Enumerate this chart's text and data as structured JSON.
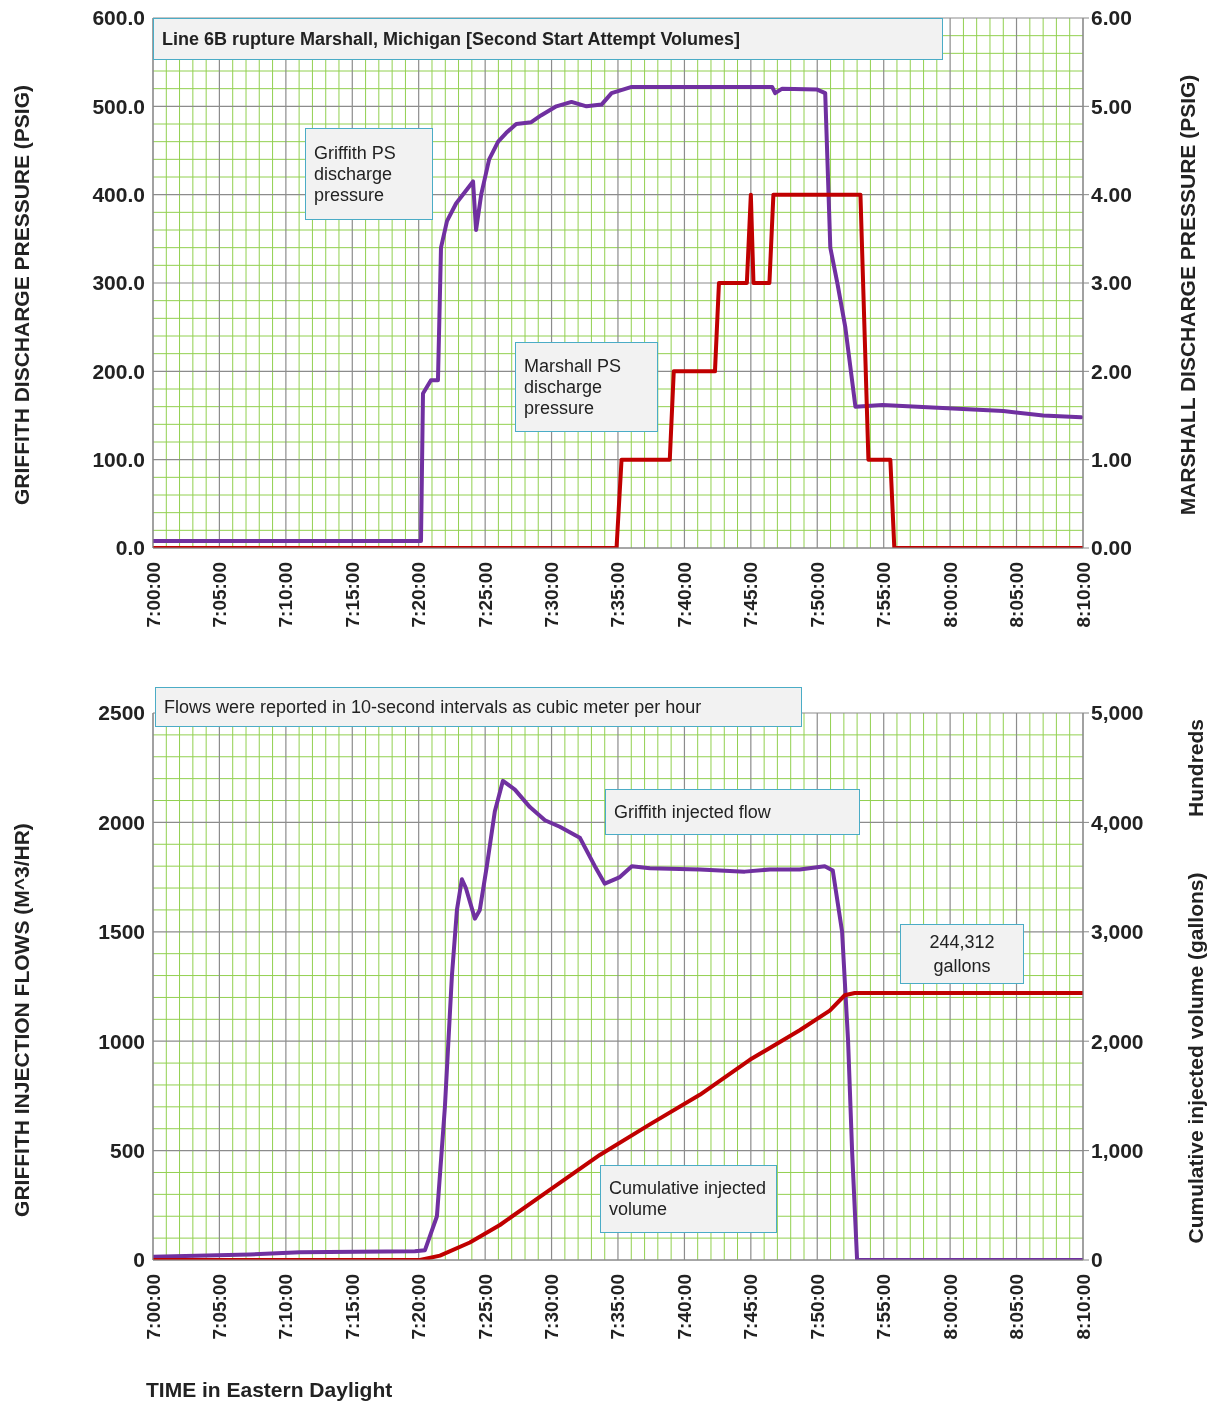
{
  "chart_data": [
    {
      "type": "line",
      "title": "Line 6B rupture Marshall,  Michigan  [Second Start Attempt Volumes]",
      "ylabel": "GRIFFITH DISCHARGE PRESSURE (PSIG)",
      "y2label": "MARSHALL DISCHARGE PRESSURE (PSIG)",
      "xlim": [
        7,
        8.1667
      ],
      "xticks": [
        {
          "value": 7,
          "label": "7:00:00"
        },
        {
          "value": 7.0167,
          "label": null
        },
        {
          "value": 7.0333,
          "label": null
        },
        {
          "value": 7.05,
          "label": null
        },
        {
          "value": 7.0667,
          "label": null
        },
        {
          "value": 7.0833,
          "label": "7:05:00"
        },
        {
          "value": 7.1,
          "label": null
        },
        {
          "value": 7.1167,
          "label": null
        },
        {
          "value": 7.1333,
          "label": null
        },
        {
          "value": 7.15,
          "label": null
        },
        {
          "value": 7.1667,
          "label": "7:10:00"
        },
        {
          "value": 7.1833,
          "label": null
        },
        {
          "value": 7.2,
          "label": null
        },
        {
          "value": 7.2167,
          "label": null
        },
        {
          "value": 7.2333,
          "label": null
        },
        {
          "value": 7.25,
          "label": "7:15:00"
        },
        {
          "value": 7.2667,
          "label": null
        },
        {
          "value": 7.2833,
          "label": null
        },
        {
          "value": 7.3,
          "label": null
        },
        {
          "value": 7.3167,
          "label": null
        },
        {
          "value": 7.3333,
          "label": "7:20:00"
        },
        {
          "value": 7.35,
          "label": null
        },
        {
          "value": 7.3667,
          "label": null
        },
        {
          "value": 7.3833,
          "label": null
        },
        {
          "value": 7.4,
          "label": null
        },
        {
          "value": 7.4167,
          "label": "7:25:00"
        },
        {
          "value": 7.4333,
          "label": null
        },
        {
          "value": 7.45,
          "label": null
        },
        {
          "value": 7.4667,
          "label": null
        },
        {
          "value": 7.4833,
          "label": null
        },
        {
          "value": 7.5,
          "label": "7:30:00"
        },
        {
          "value": 7.5167,
          "label": null
        },
        {
          "value": 7.5333,
          "label": null
        },
        {
          "value": 7.55,
          "label": null
        },
        {
          "value": 7.5667,
          "label": null
        },
        {
          "value": 7.5833,
          "label": "7:35:00"
        },
        {
          "value": 7.6,
          "label": null
        },
        {
          "value": 7.6167,
          "label": null
        },
        {
          "value": 7.6333,
          "label": null
        },
        {
          "value": 7.65,
          "label": null
        },
        {
          "value": 7.6667,
          "label": "7:40:00"
        },
        {
          "value": 7.6833,
          "label": null
        },
        {
          "value": 7.7,
          "label": null
        },
        {
          "value": 7.7167,
          "label": null
        },
        {
          "value": 7.7333,
          "label": null
        },
        {
          "value": 7.75,
          "label": "7:45:00"
        },
        {
          "value": 7.7667,
          "label": null
        },
        {
          "value": 7.7833,
          "label": null
        },
        {
          "value": 7.8,
          "label": null
        },
        {
          "value": 7.8167,
          "label": null
        },
        {
          "value": 7.8333,
          "label": "7:50:00"
        },
        {
          "value": 7.85,
          "label": null
        },
        {
          "value": 7.8667,
          "label": null
        },
        {
          "value": 7.8833,
          "label": null
        },
        {
          "value": 7.9,
          "label": null
        },
        {
          "value": 7.9167,
          "label": "7:55:00"
        },
        {
          "value": 7.9333,
          "label": null
        },
        {
          "value": 7.95,
          "label": null
        },
        {
          "value": 7.9667,
          "label": null
        },
        {
          "value": 7.9833,
          "label": null
        },
        {
          "value": 8,
          "label": "8:00:00"
        },
        {
          "value": 8.0167,
          "label": null
        },
        {
          "value": 8.0333,
          "label": null
        },
        {
          "value": 8.05,
          "label": null
        },
        {
          "value": 8.0667,
          "label": null
        },
        {
          "value": 8.0833,
          "label": "8:05:00"
        },
        {
          "value": 8.1,
          "label": null
        },
        {
          "value": 8.1167,
          "label": null
        },
        {
          "value": 8.1333,
          "label": null
        },
        {
          "value": 8.15,
          "label": null
        },
        {
          "value": 8.1667,
          "label": "8:10:00"
        }
      ],
      "ylim": [
        0,
        600
      ],
      "yticks": [
        {
          "value": 0,
          "label": "0.0"
        },
        {
          "value": 20,
          "label": null
        },
        {
          "value": 40,
          "label": null
        },
        {
          "value": 60,
          "label": null
        },
        {
          "value": 80,
          "label": null
        },
        {
          "value": 100,
          "label": "100.0"
        },
        {
          "value": 120,
          "label": null
        },
        {
          "value": 140,
          "label": null
        },
        {
          "value": 160,
          "label": null
        },
        {
          "value": 180,
          "label": null
        },
        {
          "value": 200,
          "label": "200.0"
        },
        {
          "value": 220,
          "label": null
        },
        {
          "value": 240,
          "label": null
        },
        {
          "value": 260,
          "label": null
        },
        {
          "value": 280,
          "label": null
        },
        {
          "value": 300,
          "label": "300.0"
        },
        {
          "value": 320,
          "label": null
        },
        {
          "value": 340,
          "label": null
        },
        {
          "value": 360,
          "label": null
        },
        {
          "value": 380,
          "label": null
        },
        {
          "value": 400,
          "label": "400.0"
        },
        {
          "value": 420,
          "label": null
        },
        {
          "value": 440,
          "label": null
        },
        {
          "value": 460,
          "label": null
        },
        {
          "value": 480,
          "label": null
        },
        {
          "value": 500,
          "label": "500.0"
        },
        {
          "value": 520,
          "label": null
        },
        {
          "value": 540,
          "label": null
        },
        {
          "value": 560,
          "label": null
        },
        {
          "value": 580,
          "label": null
        },
        {
          "value": 600,
          "label": "600.0"
        }
      ],
      "y2lim": [
        0,
        6
      ],
      "y2ticks": [
        {
          "value": 0,
          "label": "0.00"
        },
        {
          "value": 1,
          "label": "1.00"
        },
        {
          "value": 2,
          "label": "2.00"
        },
        {
          "value": 3,
          "label": "3.00"
        },
        {
          "value": 4,
          "label": "4.00"
        },
        {
          "value": 5,
          "label": "5.00"
        },
        {
          "value": 6,
          "label": "6.00"
        }
      ],
      "grid": true,
      "series": [
        {
          "name": "Griffith PS discharge pressure",
          "color": "#7030a0",
          "x": [
            7.0,
            7.3362,
            7.3387,
            7.3487,
            7.3575,
            7.3613,
            7.3688,
            7.3802,
            7.4015,
            7.4053,
            7.4117,
            7.4217,
            7.433,
            7.4432,
            7.4557,
            7.4745,
            7.4872,
            7.506,
            7.525,
            7.5438,
            7.5627,
            7.5753,
            7.6005,
            7.6885,
            7.7767,
            7.7805,
            7.7893,
            7.8333,
            7.8433,
            7.8497,
            7.8585,
            7.8685,
            7.8812,
            7.9152,
            8.0033,
            8.0667,
            8.1167,
            8.1643
          ],
          "values": [
            8,
            8,
            175,
            190,
            190,
            340,
            370,
            390,
            415,
            360,
            400,
            440,
            460,
            470,
            480,
            482,
            490,
            500,
            505,
            500,
            502,
            515,
            522,
            522,
            522,
            515,
            520,
            519,
            515,
            340,
            300,
            250,
            160,
            162,
            158,
            155,
            150,
            148
          ]
        },
        {
          "name": "Marshall PS discharge pressure",
          "color": "#c00000",
          "axis": "y2",
          "x": [
            7.0,
            7.5815,
            7.5878,
            7.6483,
            7.6533,
            7.705,
            7.71,
            7.745,
            7.75,
            7.7533,
            7.7733,
            7.7783,
            7.8875,
            7.8975,
            7.925,
            7.93,
            8.1667
          ],
          "values": [
            0,
            0,
            1,
            1,
            2,
            2,
            3,
            3,
            4,
            3,
            3,
            4,
            4,
            1,
            1,
            0,
            0
          ]
        }
      ]
    },
    {
      "type": "line",
      "title": "Flows were reported in 10-second intervals as cubic meter per hour",
      "xlabel": "TIME in Eastern Daylight",
      "ylabel": "GRIFFITH INJECTION FLOWS (M^3/HR)",
      "y2label": "Cumulative injected volume (gallons)",
      "annotations": [
        "Hundreds",
        "244,312 gallons"
      ],
      "xlim": [
        7,
        8.1667
      ],
      "xticks": [
        {
          "value": 7,
          "label": "7:00:00"
        },
        {
          "value": 7.0167,
          "label": null
        },
        {
          "value": 7.0333,
          "label": null
        },
        {
          "value": 7.05,
          "label": null
        },
        {
          "value": 7.0667,
          "label": null
        },
        {
          "value": 7.0833,
          "label": "7:05:00"
        },
        {
          "value": 7.1,
          "label": null
        },
        {
          "value": 7.1167,
          "label": null
        },
        {
          "value": 7.1333,
          "label": null
        },
        {
          "value": 7.15,
          "label": null
        },
        {
          "value": 7.1667,
          "label": "7:10:00"
        },
        {
          "value": 7.1833,
          "label": null
        },
        {
          "value": 7.2,
          "label": null
        },
        {
          "value": 7.2167,
          "label": null
        },
        {
          "value": 7.2333,
          "label": null
        },
        {
          "value": 7.25,
          "label": "7:15:00"
        },
        {
          "value": 7.2667,
          "label": null
        },
        {
          "value": 7.2833,
          "label": null
        },
        {
          "value": 7.3,
          "label": null
        },
        {
          "value": 7.3167,
          "label": null
        },
        {
          "value": 7.3333,
          "label": "7:20:00"
        },
        {
          "value": 7.35,
          "label": null
        },
        {
          "value": 7.3667,
          "label": null
        },
        {
          "value": 7.3833,
          "label": null
        },
        {
          "value": 7.4,
          "label": null
        },
        {
          "value": 7.4167,
          "label": "7:25:00"
        },
        {
          "value": 7.4333,
          "label": null
        },
        {
          "value": 7.45,
          "label": null
        },
        {
          "value": 7.4667,
          "label": null
        },
        {
          "value": 7.4833,
          "label": null
        },
        {
          "value": 7.5,
          "label": "7:30:00"
        },
        {
          "value": 7.5167,
          "label": null
        },
        {
          "value": 7.5333,
          "label": null
        },
        {
          "value": 7.55,
          "label": null
        },
        {
          "value": 7.5667,
          "label": null
        },
        {
          "value": 7.5833,
          "label": "7:35:00"
        },
        {
          "value": 7.6,
          "label": null
        },
        {
          "value": 7.6167,
          "label": null
        },
        {
          "value": 7.6333,
          "label": null
        },
        {
          "value": 7.65,
          "label": null
        },
        {
          "value": 7.6667,
          "label": "7:40:00"
        },
        {
          "value": 7.6833,
          "label": null
        },
        {
          "value": 7.7,
          "label": null
        },
        {
          "value": 7.7167,
          "label": null
        },
        {
          "value": 7.7333,
          "label": null
        },
        {
          "value": 7.75,
          "label": "7:45:00"
        },
        {
          "value": 7.7667,
          "label": null
        },
        {
          "value": 7.7833,
          "label": null
        },
        {
          "value": 7.8,
          "label": null
        },
        {
          "value": 7.8167,
          "label": null
        },
        {
          "value": 7.8333,
          "label": "7:50:00"
        },
        {
          "value": 7.85,
          "label": null
        },
        {
          "value": 7.8667,
          "label": null
        },
        {
          "value": 7.8833,
          "label": null
        },
        {
          "value": 7.9,
          "label": null
        },
        {
          "value": 7.9167,
          "label": "7:55:00"
        },
        {
          "value": 7.9333,
          "label": null
        },
        {
          "value": 7.95,
          "label": null
        },
        {
          "value": 7.9667,
          "label": null
        },
        {
          "value": 7.9833,
          "label": null
        },
        {
          "value": 8,
          "label": "8:00:00"
        },
        {
          "value": 8.0167,
          "label": null
        },
        {
          "value": 8.0333,
          "label": null
        },
        {
          "value": 8.05,
          "label": null
        },
        {
          "value": 8.0667,
          "label": null
        },
        {
          "value": 8.0833,
          "label": "8:05:00"
        },
        {
          "value": 8.1,
          "label": null
        },
        {
          "value": 8.1167,
          "label": null
        },
        {
          "value": 8.1333,
          "label": null
        },
        {
          "value": 8.15,
          "label": null
        },
        {
          "value": 8.1667,
          "label": "8:10:00"
        }
      ],
      "ylim": [
        0,
        2500
      ],
      "yticks": [
        0,
        {
          "value": 100,
          "label": null
        },
        {
          "value": 200,
          "label": null
        },
        {
          "value": 300,
          "label": null
        },
        {
          "value": 400,
          "label": null
        },
        500,
        {
          "value": 600,
          "label": null
        },
        {
          "value": 700,
          "label": null
        },
        {
          "value": 800,
          "label": null
        },
        {
          "value": 900,
          "label": null
        },
        1000,
        {
          "value": 1100,
          "label": null
        },
        {
          "value": 1200,
          "label": null
        },
        {
          "value": 1300,
          "label": null
        },
        {
          "value": 1400,
          "label": null
        },
        1500,
        {
          "value": 1600,
          "label": null
        },
        {
          "value": 1700,
          "label": null
        },
        {
          "value": 1800,
          "label": null
        },
        {
          "value": 1900,
          "label": null
        },
        2000,
        {
          "value": 2100,
          "label": null
        },
        {
          "value": 2200,
          "label": null
        },
        {
          "value": 2300,
          "label": null
        },
        {
          "value": 2400,
          "label": null
        },
        2500
      ],
      "y2lim": [
        0,
        5000
      ],
      "y2ticks": [
        0,
        {
          "value": 1000,
          "label": "1,000"
        },
        {
          "value": 2000,
          "label": "2,000"
        },
        {
          "value": 3000,
          "label": "3,000"
        },
        {
          "value": 4000,
          "label": "4,000"
        },
        {
          "value": 5000,
          "label": "5,000"
        }
      ],
      "grid": true,
      "series": [
        {
          "name": "Griffith injected flow",
          "color": "#7030a0",
          "x": [
            7.0,
            7.1217,
            7.1843,
            7.3285,
            7.3412,
            7.3562,
            7.3662,
            7.375,
            7.3813,
            7.3875,
            7.3925,
            7.4038,
            7.41,
            7.4188,
            7.4288,
            7.439,
            7.454,
            7.4728,
            7.4917,
            7.5103,
            7.5355,
            7.5543,
            7.5668,
            7.5857,
            7.6007,
            7.6233,
            7.686,
            7.7423,
            7.7738,
            7.8113,
            7.8427,
            7.8528,
            7.8645,
            7.872,
            7.877,
            7.8833,
            8.1667
          ],
          "values": [
            15,
            25,
            35,
            40,
            45,
            200,
            700,
            1300,
            1600,
            1740,
            1700,
            1560,
            1600,
            1800,
            2050,
            2190,
            2150,
            2070,
            2010,
            1980,
            1930,
            1800,
            1720,
            1750,
            1800,
            1790,
            1785,
            1775,
            1785,
            1785,
            1800,
            1780,
            1500,
            1000,
            500,
            0,
            0
          ]
        },
        {
          "name": "Cumulative injected volume",
          "color": "#c00000",
          "axis": "y2",
          "x": [
            7.0,
            7.3348,
            7.36,
            7.3975,
            7.4352,
            7.4978,
            7.5605,
            7.6233,
            7.686,
            7.7487,
            7.8113,
            7.849,
            7.8678,
            7.8803,
            8.1667
          ],
          "values": [
            0,
            0,
            40,
            160,
            320,
            640,
            960,
            1240,
            1510,
            1830,
            2100,
            2280,
            2420,
            2440,
            2440
          ]
        }
      ]
    }
  ]
}
